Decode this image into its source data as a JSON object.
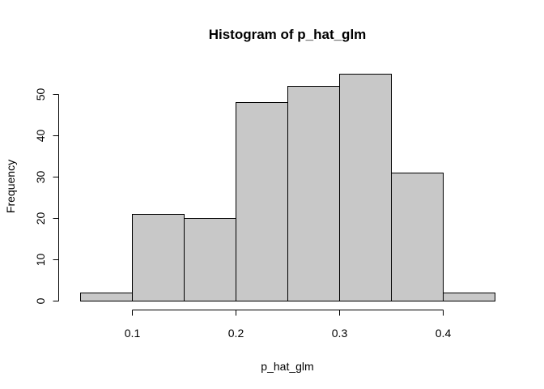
{
  "chart_data": {
    "type": "bar",
    "title": "Histogram of p_hat_glm",
    "xlabel": "p_hat_glm",
    "ylabel": "Frequency",
    "bins": [
      {
        "from": 0.05,
        "to": 0.1,
        "count": 2
      },
      {
        "from": 0.1,
        "to": 0.15,
        "count": 21
      },
      {
        "from": 0.15,
        "to": 0.2,
        "count": 20
      },
      {
        "from": 0.2,
        "to": 0.25,
        "count": 48
      },
      {
        "from": 0.25,
        "to": 0.3,
        "count": 52
      },
      {
        "from": 0.3,
        "to": 0.35,
        "count": 55
      },
      {
        "from": 0.35,
        "to": 0.4,
        "count": 31
      },
      {
        "from": 0.4,
        "to": 0.45,
        "count": 2
      }
    ],
    "xticks": [
      "0.1",
      "0.2",
      "0.3",
      "0.4"
    ],
    "yticks": [
      "0",
      "10",
      "20",
      "30",
      "40",
      "50"
    ],
    "xlim": [
      0.05,
      0.45
    ],
    "ylim": [
      0,
      55
    ],
    "bar_color": "#c8c8c8",
    "grid": false
  }
}
